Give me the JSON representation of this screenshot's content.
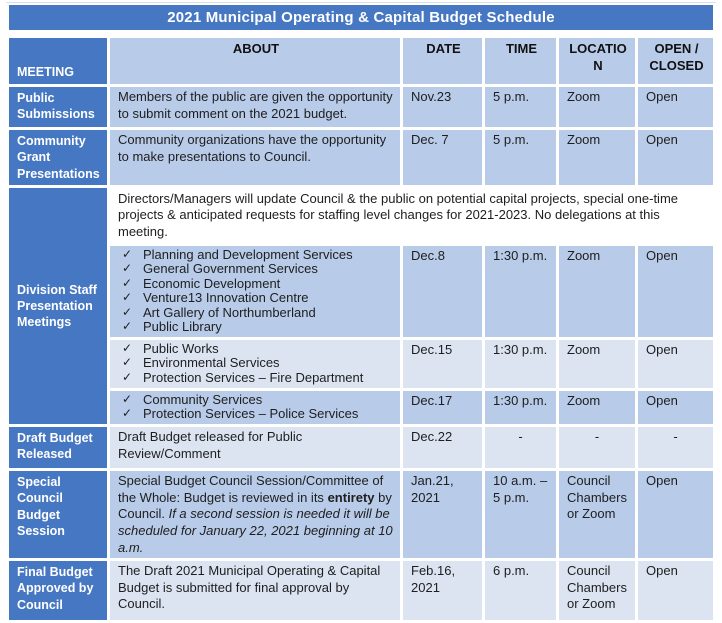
{
  "title": "2021 Municipal Operating & Capital Budget Schedule",
  "colors": {
    "accent_blue": "#4677C3",
    "light_blue_row": "#B8CBE9",
    "pale_blue_row": "#DCE4F2",
    "white_row": "#FFFFFF",
    "header_text_on_blue": "#FFFFFF",
    "body_text": "#1E1E1E"
  },
  "icons": {
    "checkmark": "✓"
  },
  "columns": {
    "meeting": "MEETING",
    "about": "ABOUT",
    "date": "DATE",
    "time": "TIME",
    "location": "LOCATION",
    "open_closed": "OPEN / CLOSED"
  },
  "rows": {
    "public_submissions": {
      "meeting": "Public Submissions",
      "about": "Members of the public are given the opportunity to submit comment on the 2021 budget.",
      "date": "Nov.23",
      "time": "5 p.m.",
      "location": "Zoom",
      "open_closed": "Open"
    },
    "community_grant": {
      "meeting": "Community Grant Presentations",
      "about": "Community organizations have the opportunity to make presentations to Council.",
      "date": "Dec. 7",
      "time": "5 p.m.",
      "location": "Zoom",
      "open_closed": "Open"
    },
    "division": {
      "meeting": "Division Staff Presentation Meetings",
      "intro": "Directors/Managers will update Council & the public on potential capital projects, special one-time projects & anticipated requests for staffing level changes for 2021-2023. No delegations at this meeting.",
      "sessions": [
        {
          "items": [
            "Planning and Development Services",
            "General Government Services",
            "Economic Development",
            "Venture13 Innovation Centre",
            "Art Gallery of Northumberland",
            "Public Library"
          ],
          "date": "Dec.8",
          "time": "1:30 p.m.",
          "location": "Zoom",
          "open_closed": "Open"
        },
        {
          "items": [
            "Public Works",
            "Environmental Services",
            "Protection Services – Fire Department"
          ],
          "date": "Dec.15",
          "time": "1:30 p.m.",
          "location": "Zoom",
          "open_closed": "Open"
        },
        {
          "items": [
            "Community Services",
            "Protection Services – Police Services"
          ],
          "date": "Dec.17",
          "time": "1:30 p.m.",
          "location": "Zoom",
          "open_closed": "Open"
        }
      ]
    },
    "draft_budget": {
      "meeting": "Draft Budget Released",
      "about": "Draft Budget released for Public Review/Comment",
      "date": "Dec.22",
      "time": "-",
      "location": "-",
      "open_closed": "-"
    },
    "special_session": {
      "meeting": "Special Council Budget Session",
      "about_part1": "Special Budget Council Session/Committee of the Whole: Budget is reviewed in its ",
      "about_bold": "entirety",
      "about_part2": " by Council. ",
      "about_italic": "If a second session is needed it will be scheduled for January 22, 2021 beginning at 10 a.m.",
      "date": "Jan.21, 2021",
      "time": "10 a.m. – 5 p.m.",
      "location": "Council Chambers or Zoom",
      "open_closed": "Open"
    },
    "final_budget": {
      "meeting": "Final Budget Approved by Council",
      "about": "The Draft 2021 Municipal Operating & Capital Budget is submitted for final approval by Council.",
      "date": "Feb.16, 2021",
      "time": "6 p.m.",
      "location": "Council Chambers or Zoom",
      "open_closed": "Open"
    }
  }
}
